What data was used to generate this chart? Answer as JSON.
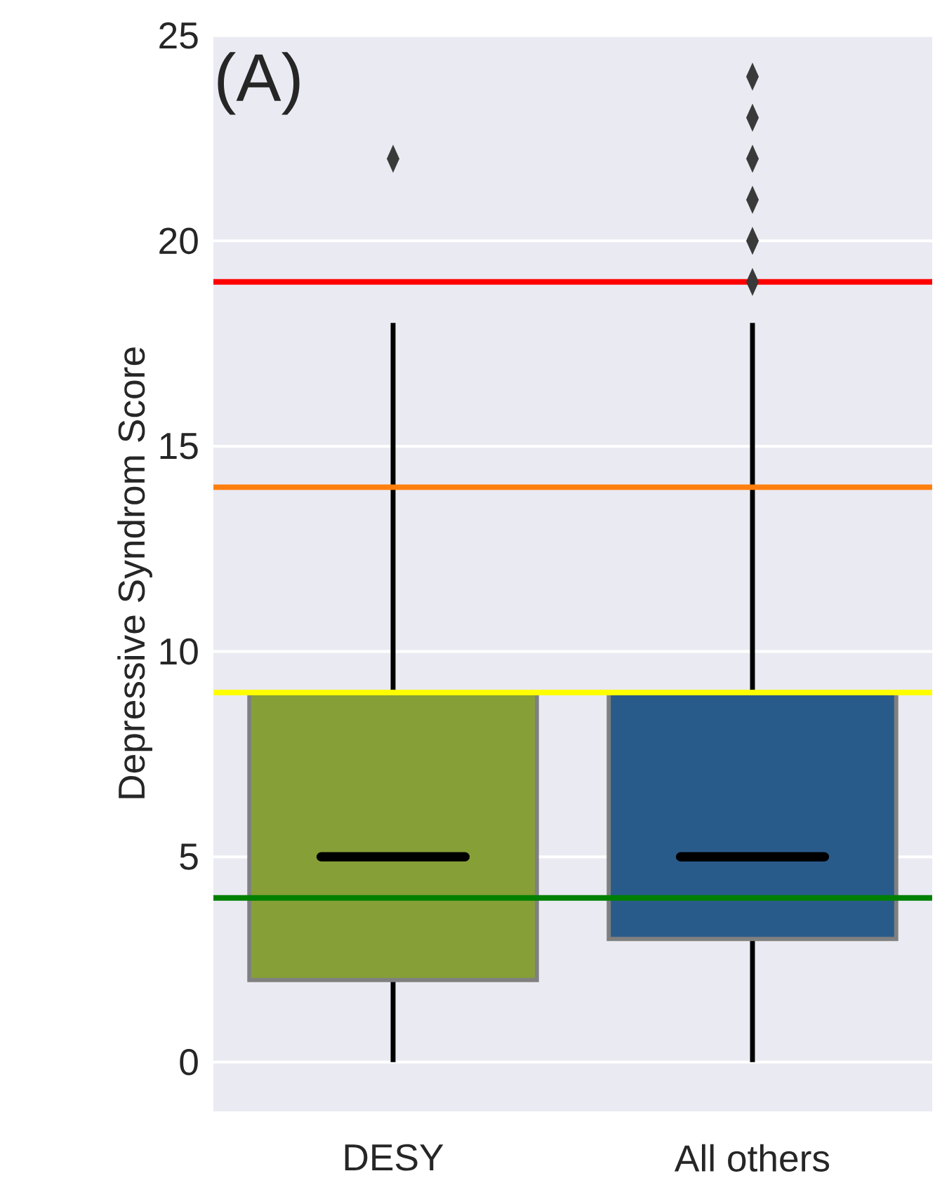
{
  "chart_data": {
    "type": "box",
    "categories": [
      "DESY",
      "All others"
    ],
    "boxes": [
      {
        "low": 0,
        "q1": 2,
        "median": 5,
        "q3": 9,
        "high": 18,
        "outliers": [
          22
        ]
      },
      {
        "low": 0,
        "q1": 3,
        "median": 5,
        "q3": 9,
        "high": 18,
        "outliers": [
          19,
          20,
          21,
          22,
          23,
          24
        ]
      }
    ],
    "colors": [
      "#86a037",
      "#295b8a"
    ],
    "ylabel": "Depressive Syndrom Score",
    "ylim": [
      -1.2,
      25
    ],
    "yticks": [
      0,
      5,
      10,
      15,
      20,
      25
    ],
    "grid": "y",
    "marker": "diamond",
    "ref_lines": [
      {
        "axis": "y",
        "value": 19,
        "color": "#ff0000"
      },
      {
        "axis": "y",
        "value": 14,
        "color": "#ff7f0e"
      },
      {
        "axis": "y",
        "value": 9,
        "color": "#ffff00"
      },
      {
        "axis": "y",
        "value": 4,
        "color": "#008000"
      }
    ],
    "annotations": [
      "(A)"
    ]
  }
}
